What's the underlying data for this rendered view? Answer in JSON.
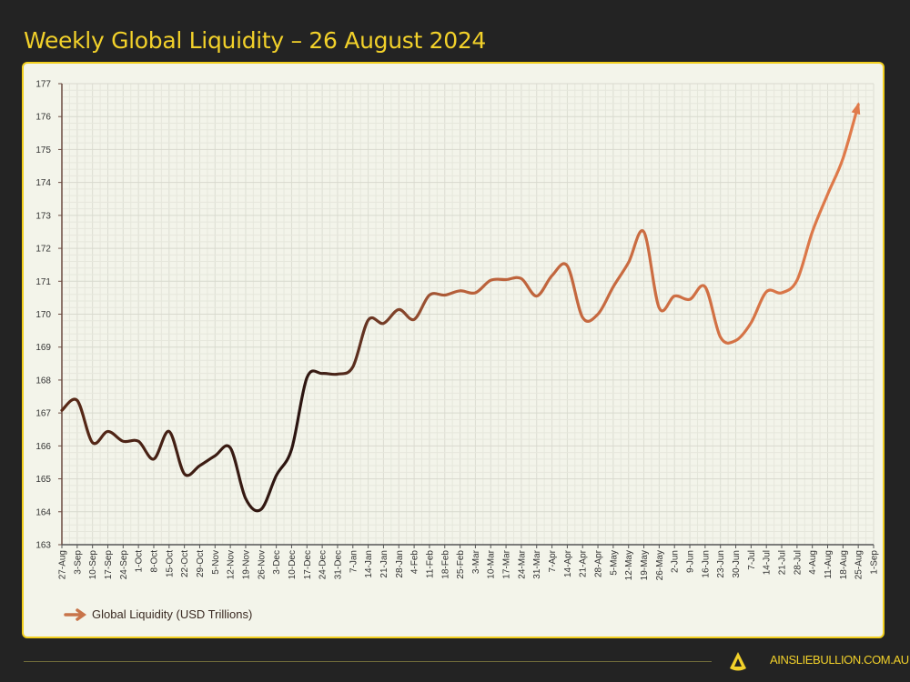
{
  "header": {
    "title": "Weekly Global Liquidity – 26 August 2024"
  },
  "footer": {
    "site": "AINSLIEBULLION.COM.AU",
    "logo_letter": "A"
  },
  "colors": {
    "background": "#232323",
    "accent": "#f2d12a",
    "plot_bg": "#f3f4ea",
    "line_start": "#3a1a10",
    "line_end": "#e07a4a",
    "grid": "#dedfd4"
  },
  "chart_data": {
    "type": "line",
    "title": "",
    "xlabel": "",
    "ylabel": "",
    "ylim": [
      163,
      177
    ],
    "yticks": [
      "163",
      "164",
      "165",
      "166",
      "167",
      "168",
      "169",
      "170",
      "171",
      "172",
      "173",
      "174",
      "175",
      "176",
      "177"
    ],
    "grid": true,
    "legend_position": "bottom-left",
    "categories": [
      "27-Aug",
      "3-Sep",
      "10-Sep",
      "17-Sep",
      "24-Sep",
      "1-Oct",
      "8-Oct",
      "15-Oct",
      "22-Oct",
      "29-Oct",
      "5-Nov",
      "12-Nov",
      "19-Nov",
      "26-Nov",
      "3-Dec",
      "10-Dec",
      "17-Dec",
      "24-Dec",
      "31-Dec",
      "7-Jan",
      "14-Jan",
      "21-Jan",
      "28-Jan",
      "4-Feb",
      "11-Feb",
      "18-Feb",
      "25-Feb",
      "3-Mar",
      "10-Mar",
      "17-Mar",
      "24-Mar",
      "31-Mar",
      "7-Apr",
      "14-Apr",
      "21-Apr",
      "28-Apr",
      "5-May",
      "12-May",
      "19-May",
      "26-May",
      "2-Jun",
      "9-Jun",
      "16-Jun",
      "23-Jun",
      "30-Jun",
      "7-Jul",
      "14-Jul",
      "21-Jul",
      "28-Jul",
      "4-Aug",
      "11-Aug",
      "18-Aug",
      "25-Aug",
      "1-Sep"
    ],
    "series": [
      {
        "name": "Global Liquidity (USD Trillions)",
        "values": [
          167.08,
          167.38,
          166.1,
          166.44,
          166.14,
          166.14,
          165.6,
          166.44,
          165.15,
          165.4,
          165.7,
          165.94,
          164.4,
          164.07,
          165.1,
          165.9,
          168.07,
          168.2,
          168.18,
          168.4,
          169.82,
          169.72,
          170.14,
          169.84,
          170.58,
          170.58,
          170.71,
          170.65,
          171.03,
          171.05,
          171.08,
          170.55,
          171.17,
          171.47,
          169.9,
          170.0,
          170.83,
          171.57,
          172.5,
          170.19,
          170.55,
          170.45,
          170.83,
          169.3,
          169.2,
          169.74,
          170.68,
          170.65,
          171.03,
          172.5,
          173.64,
          174.73,
          176.36,
          null
        ]
      }
    ]
  }
}
